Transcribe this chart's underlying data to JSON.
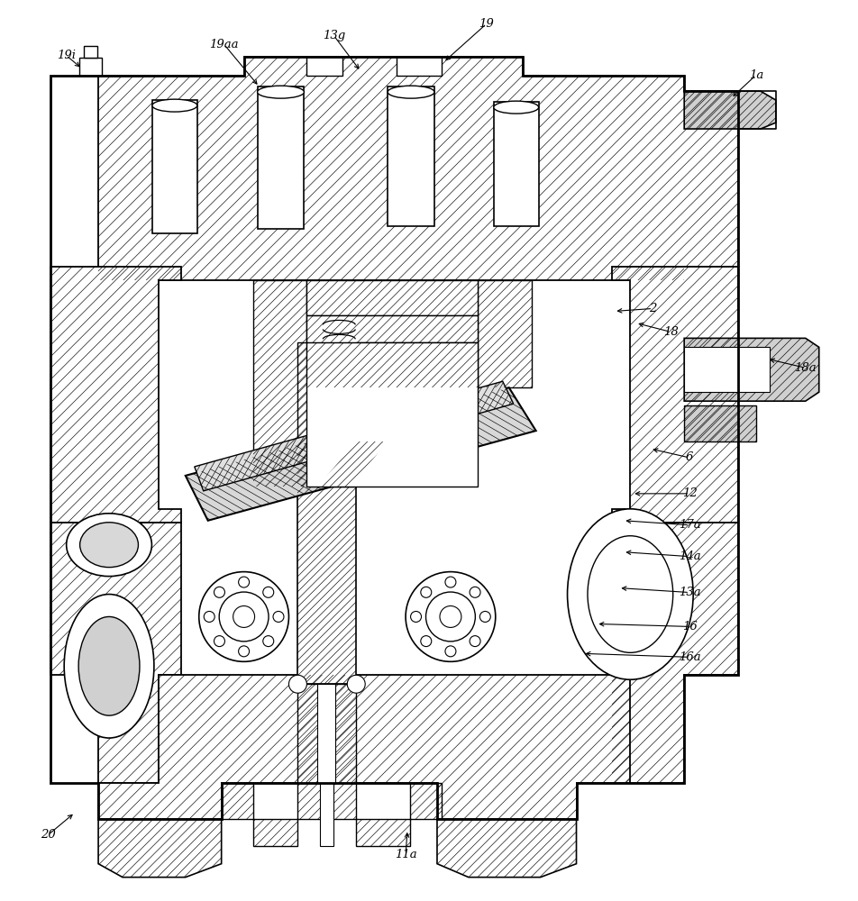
{
  "background_color": "#ffffff",
  "line_color": "#000000",
  "figsize": [
    9.53,
    10.0
  ],
  "dpi": 100,
  "labels_info": [
    [
      "19i",
      72,
      940,
      90,
      925
    ],
    [
      "19aa",
      248,
      952,
      287,
      905
    ],
    [
      "13g",
      370,
      962,
      400,
      922
    ],
    [
      "19",
      540,
      975,
      492,
      932
    ],
    [
      "1a",
      840,
      918,
      812,
      892
    ],
    [
      "2",
      725,
      658,
      682,
      655
    ],
    [
      "18",
      745,
      632,
      706,
      642
    ],
    [
      "18a",
      895,
      592,
      852,
      602
    ],
    [
      "6",
      766,
      492,
      722,
      502
    ],
    [
      "12",
      766,
      452,
      702,
      452
    ],
    [
      "17a",
      766,
      417,
      692,
      422
    ],
    [
      "14a",
      766,
      382,
      692,
      387
    ],
    [
      "13a",
      766,
      342,
      687,
      347
    ],
    [
      "16",
      766,
      304,
      662,
      307
    ],
    [
      "16a",
      766,
      270,
      647,
      274
    ],
    [
      "20",
      52,
      72,
      82,
      97
    ],
    [
      "11a",
      450,
      50,
      452,
      78
    ]
  ]
}
